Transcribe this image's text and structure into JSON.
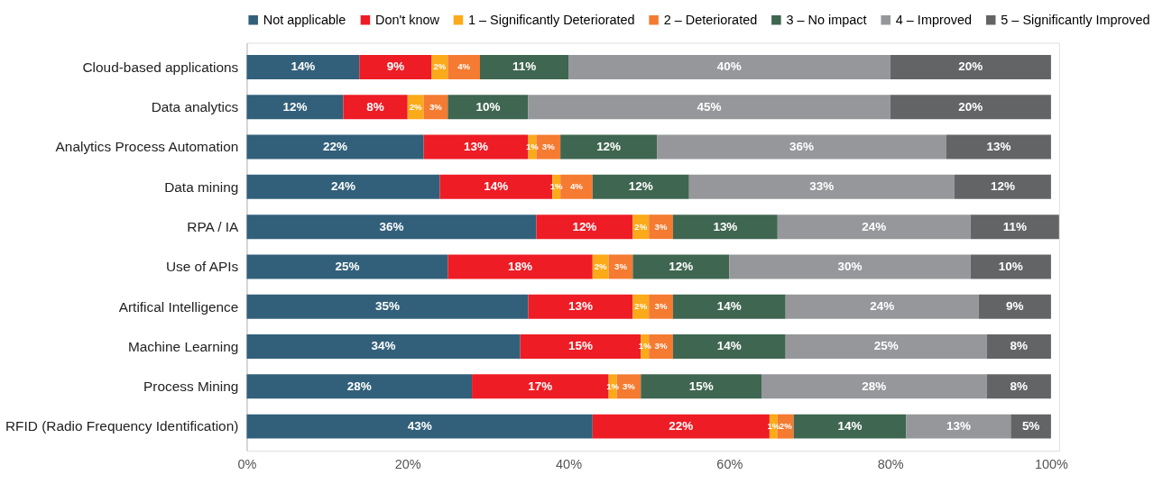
{
  "chart_data": {
    "type": "bar",
    "orientation": "horizontal",
    "stacked": true,
    "legend": "top",
    "grid": false,
    "categories": [
      "Cloud-based applications",
      "Data analytics",
      "Analytics Process Automation",
      "Data mining",
      "RPA / IA",
      "Use of APIs",
      "Artifical Intelligence",
      "Machine Learning",
      "Process Mining",
      "RFID (Radio Frequency Identification)"
    ],
    "xlim": [
      0,
      101
    ],
    "xticks": [
      {
        "value": 0,
        "label": "0%"
      },
      {
        "value": 20,
        "label": "20%"
      },
      {
        "value": 40,
        "label": "40%"
      },
      {
        "value": 60,
        "label": "60%"
      },
      {
        "value": 80,
        "label": "80%"
      },
      {
        "value": 100,
        "label": "100%"
      }
    ],
    "series": [
      {
        "name": "Not applicable",
        "color": "#32607a",
        "values": [
          14,
          12,
          22,
          24,
          36,
          25,
          35,
          34,
          28,
          43
        ],
        "value_labels": [
          "14%",
          "12%",
          "22%",
          "24%",
          "36%",
          "25%",
          "35%",
          "34%",
          "28%",
          "43%"
        ]
      },
      {
        "name": "Don't know",
        "color": "#ee1c25",
        "values": [
          9,
          8,
          13,
          14,
          12,
          18,
          13,
          15,
          17,
          22
        ],
        "value_labels": [
          "9%",
          "8%",
          "13%",
          "14%",
          "12%",
          "18%",
          "13%",
          "15%",
          "17%",
          "22%"
        ]
      },
      {
        "name": "1 – Significantly Deteriorated",
        "color": "#fbaa19",
        "values": [
          2,
          2,
          1,
          1,
          2,
          2,
          2,
          1,
          1,
          1
        ],
        "value_labels": [
          "2%",
          "2%",
          "1%",
          "1%",
          "2%",
          "2%",
          "2%",
          "1%",
          "1%",
          "1%"
        ]
      },
      {
        "name": "2 – Deteriorated",
        "color": "#f47b31",
        "values": [
          4,
          3,
          3,
          4,
          3,
          3,
          3,
          3,
          3,
          2
        ],
        "value_labels": [
          "4%",
          "3%",
          "3%",
          "4%",
          "3%",
          "3%",
          "3%",
          "3%",
          "3%",
          "2%"
        ]
      },
      {
        "name": "3 – No impact",
        "color": "#3f6650",
        "values": [
          11,
          10,
          12,
          12,
          13,
          12,
          14,
          14,
          15,
          14
        ],
        "value_labels": [
          "11%",
          "10%",
          "12%",
          "12%",
          "13%",
          "12%",
          "14%",
          "14%",
          "15%",
          "14%"
        ]
      },
      {
        "name": "4 – Improved",
        "color": "#96979b",
        "values": [
          40,
          45,
          36,
          33,
          24,
          30,
          24,
          25,
          28,
          13
        ],
        "value_labels": [
          "40%",
          "45%",
          "36%",
          "33%",
          "24%",
          "30%",
          "24%",
          "25%",
          "28%",
          "13%"
        ]
      },
      {
        "name": "5 – Significantly Improved",
        "color": "#636466",
        "values": [
          20,
          20,
          13,
          12,
          11,
          10,
          9,
          8,
          8,
          5
        ],
        "value_labels": [
          "20%",
          "20%",
          "13%",
          "12%",
          "11%",
          "10%",
          "9%",
          "8%",
          "8%",
          "5%"
        ]
      }
    ]
  }
}
